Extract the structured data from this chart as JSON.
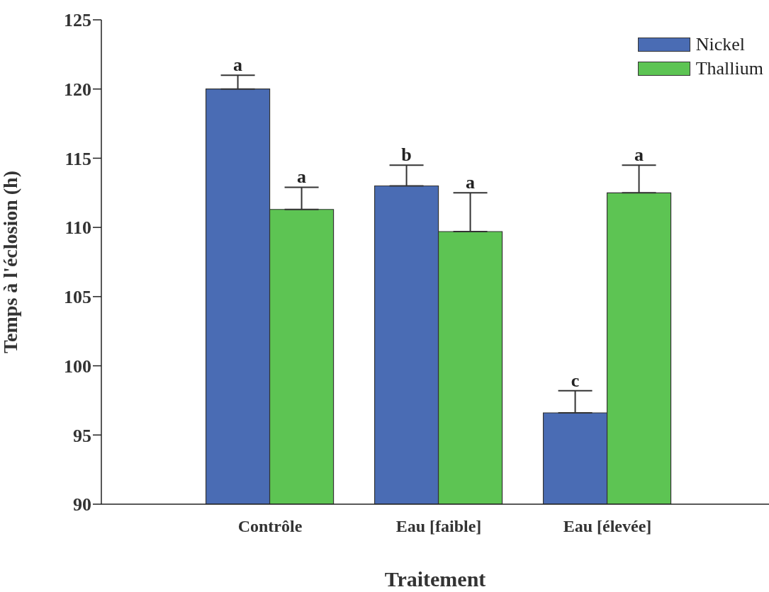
{
  "chart_data": {
    "type": "bar",
    "xlabel": "Traitement",
    "ylabel": "Temps à l'éclosion (h)",
    "categories": [
      "Contrôle",
      "Eau [faible]",
      "Eau [élevée]"
    ],
    "series": [
      {
        "name": "Nickel",
        "color": "#4a6cb4",
        "values": [
          120.0,
          113.0,
          96.6
        ],
        "errors": [
          [
            120.0,
            121.0
          ],
          [
            113.0,
            114.5
          ],
          [
            96.6,
            98.2
          ]
        ]
      },
      {
        "name": "Thallium",
        "color": "#5dc453",
        "values": [
          111.3,
          109.7,
          112.5
        ],
        "errors": [
          [
            111.3,
            112.9
          ],
          [
            109.7,
            112.5
          ],
          [
            112.5,
            114.5
          ]
        ]
      }
    ],
    "ylim": [
      90,
      125
    ],
    "yticks": [
      90,
      95,
      100,
      105,
      110,
      115,
      120,
      125
    ],
    "grid": false,
    "legend": "top right",
    "annotations": [
      "a",
      "a",
      "b",
      "a",
      "c",
      "a"
    ]
  }
}
